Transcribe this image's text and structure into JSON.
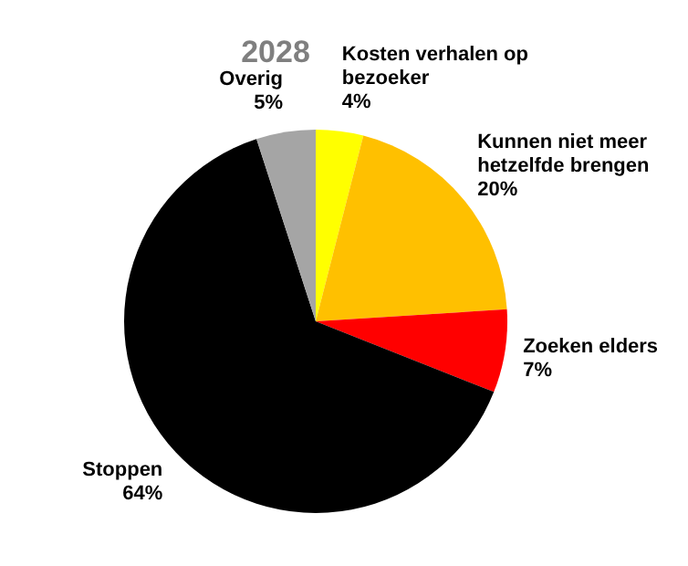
{
  "chart_data": {
    "type": "pie",
    "title": "2028",
    "categories": [
      "Kosten verhalen op bezoeker",
      "Kunnen niet meer hetzelfde brengen",
      "Zoeken elders",
      "Stoppen",
      "Overig"
    ],
    "values": [
      4,
      20,
      7,
      64,
      5
    ],
    "colors": [
      "#ffff00",
      "#ffc000",
      "#ff0000",
      "#000000",
      "#a5a5a5"
    ],
    "value_labels": [
      "4%",
      "20%",
      "7%",
      "64%",
      "5%"
    ],
    "legend": false
  }
}
